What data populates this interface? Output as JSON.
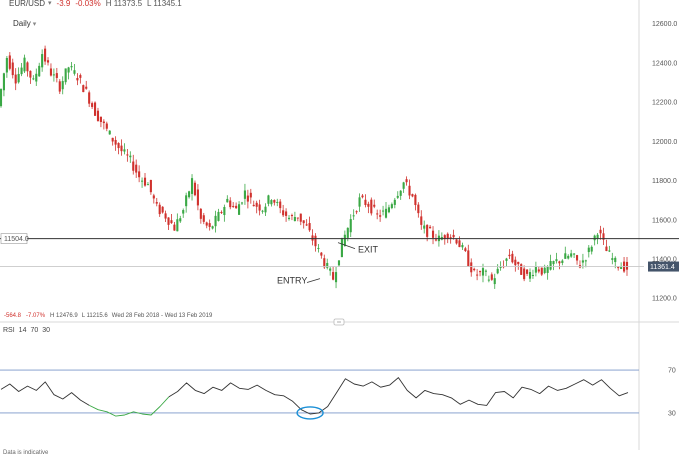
{
  "header": {
    "symbol": "EUR/USD",
    "change_points": "-3.9",
    "change_percent": "-0.03%",
    "high": "H 11373.5",
    "low": "L 11345.1"
  },
  "timeframe": {
    "label": "Daily"
  },
  "price_axis": {
    "ticks": [
      "12600.0",
      "12400.0",
      "12200.0",
      "12000.0",
      "11800.0",
      "11600.0",
      "11400.0",
      "11200.0"
    ],
    "tick_values": [
      12600,
      12400,
      12200,
      12000,
      11800,
      11600,
      11400,
      11200
    ],
    "current_price": "11361.4",
    "current_price_value": 11361.4
  },
  "level_line": {
    "label": "11504.0",
    "value": 11504
  },
  "annotations": {
    "entry": "ENTRY",
    "exit": "EXIT"
  },
  "period_info": {
    "change_points": "-564.8",
    "change_percent": "-7.07%",
    "high": "H 12476.9",
    "low": "L 11215.6",
    "range": "Wed 28 Feb 2018 - Wed 13 Feb 2019"
  },
  "rsi": {
    "name": "RSI",
    "period": "14",
    "overbought": "70",
    "oversold": "30",
    "axis_ticks": [
      "70",
      "30"
    ]
  },
  "footer": {
    "note": "Data is indicative"
  },
  "colors": {
    "up": "#3aa845",
    "down": "#d0312d",
    "level": "#333333",
    "rsi_line": "#333333",
    "rsi_oversold": "#3aa845",
    "rsi_band": "#7a96c8",
    "highlight": "#1a8fd6",
    "price_tag": "#44546a"
  },
  "chart_data": {
    "type": "candlestick",
    "title": "EUR/USD",
    "interval": "Daily",
    "date_range": [
      "Wed 28 Feb 2018",
      "Wed 13 Feb 2019"
    ],
    "ylim": [
      11150,
      12680
    ],
    "high": 12476.9,
    "low": 11215.6,
    "last": 11361.4,
    "horizontal_level": 11504.0,
    "price_series": [
      12180,
      12430,
      12320,
      12400,
      12300,
      12450,
      12350,
      12280,
      12380,
      12330,
      12250,
      12150,
      12080,
      12010,
      11950,
      11900,
      11820,
      11780,
      11660,
      11620,
      11560,
      11650,
      11800,
      11600,
      11550,
      11620,
      11700,
      11650,
      11740,
      11680,
      11660,
      11720,
      11650,
      11610,
      11620,
      11560,
      11470,
      11380,
      11300,
      11480,
      11600,
      11700,
      11680,
      11620,
      11640,
      11720,
      11790,
      11720,
      11560,
      11530,
      11500,
      11530,
      11500,
      11420,
      11320,
      11330,
      11290,
      11360,
      11420,
      11350,
      11310,
      11360,
      11330,
      11380,
      11400,
      11420,
      11370,
      11440,
      11550,
      11440,
      11380,
      11361
    ],
    "rsi_series": [
      52,
      57,
      50,
      55,
      51,
      59,
      47,
      43,
      49,
      42,
      37,
      33,
      31,
      27,
      28,
      31,
      29,
      28,
      36,
      45,
      50,
      58,
      51,
      48,
      54,
      51,
      58,
      53,
      52,
      56,
      51,
      47,
      46,
      41,
      33,
      29,
      30,
      36,
      49,
      62,
      57,
      55,
      59,
      54,
      56,
      63,
      51,
      44,
      51,
      48,
      47,
      44,
      38,
      42,
      38,
      37,
      49,
      50,
      44,
      54,
      52,
      48,
      55,
      51,
      53,
      57,
      61,
      56,
      61,
      53,
      46,
      49
    ],
    "rsi_levels": [
      70,
      30
    ]
  }
}
